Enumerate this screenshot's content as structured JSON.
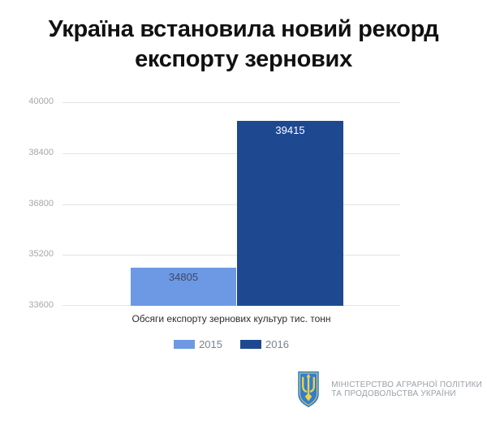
{
  "chart_data": {
    "type": "bar",
    "title": "Україна встановила новий рекорд експорту зернових",
    "categories": [
      "Обсяги експорту зернових культур тис. тонн"
    ],
    "series": [
      {
        "name": "2015",
        "values": [
          34805
        ],
        "color": "#6d99e4",
        "value_label_color": "#3a4a63"
      },
      {
        "name": "2016",
        "values": [
          39415
        ],
        "color": "#1e4991",
        "value_label_color": "#ffffff"
      }
    ],
    "xlabel": "Обсяги експорту зернових культур тис. тонн",
    "ylabel": "",
    "ylim": [
      33600,
      40000
    ],
    "yticks": [
      "40000",
      "38400",
      "36800",
      "35200",
      "33600"
    ],
    "grid": true,
    "legend_position": "bottom"
  },
  "footer": {
    "ministry_line1": "МІНІСТЕРСТВО АГРАРНОЇ ПОЛІТИКИ",
    "ministry_line2": "ТА ПРОДОВОЛЬСТВА УКРАЇНИ",
    "logo_icon": "ukraine-trident-shield",
    "logo_colors": {
      "shield_blue": "#2e7ed4",
      "trident_yellow": "#f2d13e"
    }
  }
}
